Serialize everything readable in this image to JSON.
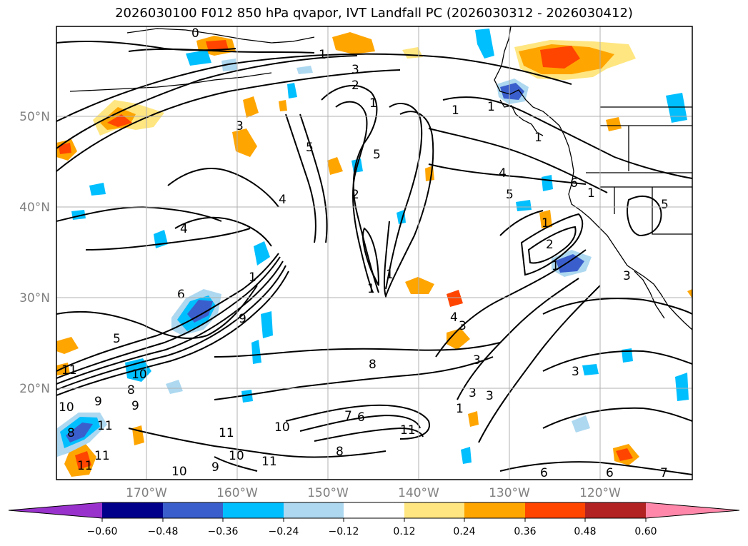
{
  "title": "2026030100 F012 850 hPa qvapor, IVT Landfall PC (2026030312 - 2026030412)",
  "lat_labels": [
    "50°N",
    "40°N",
    "30°N",
    "20°N"
  ],
  "lon_labels": [
    "170°W",
    "160°W",
    "150°W",
    "140°W",
    "130°W",
    "120°W"
  ],
  "colorbar": {
    "ticks": [
      "−0.60",
      "−0.48",
      "−0.36",
      "−0.24",
      "−0.12",
      "0.12",
      "0.24",
      "0.36",
      "0.48",
      "0.60"
    ],
    "colors": {
      "under": "#9932cc",
      "bins": [
        "#00008b",
        "#3a5fcd",
        "#00bfff",
        "#add8f0",
        "#ffffff",
        "#ffe680",
        "#ffa500",
        "#ff4500",
        "#b22222"
      ],
      "over": "#ff88aa"
    }
  },
  "contour_labels": [
    "0",
    "1",
    "3",
    "2",
    "1",
    "1",
    "1",
    "3",
    "5",
    "5",
    "2",
    "6",
    "1",
    "4",
    "5",
    "4",
    "4",
    "5",
    "6",
    "9",
    "1",
    "1",
    "1",
    "1",
    "2",
    "8",
    "3",
    "3",
    "4",
    "3",
    "3",
    "1",
    "5",
    "9",
    "10",
    "8",
    "9",
    "11",
    "10",
    "11",
    "11",
    "10",
    "11",
    "9",
    "8",
    "8",
    "10",
    "6",
    "7",
    "11",
    "11",
    "11",
    "10",
    "6",
    "6",
    "7",
    "1",
    "1",
    "3",
    "3"
  ],
  "colors": {
    "coast": "#000000",
    "contour": "#000000",
    "grid": "#b0b0b0"
  }
}
